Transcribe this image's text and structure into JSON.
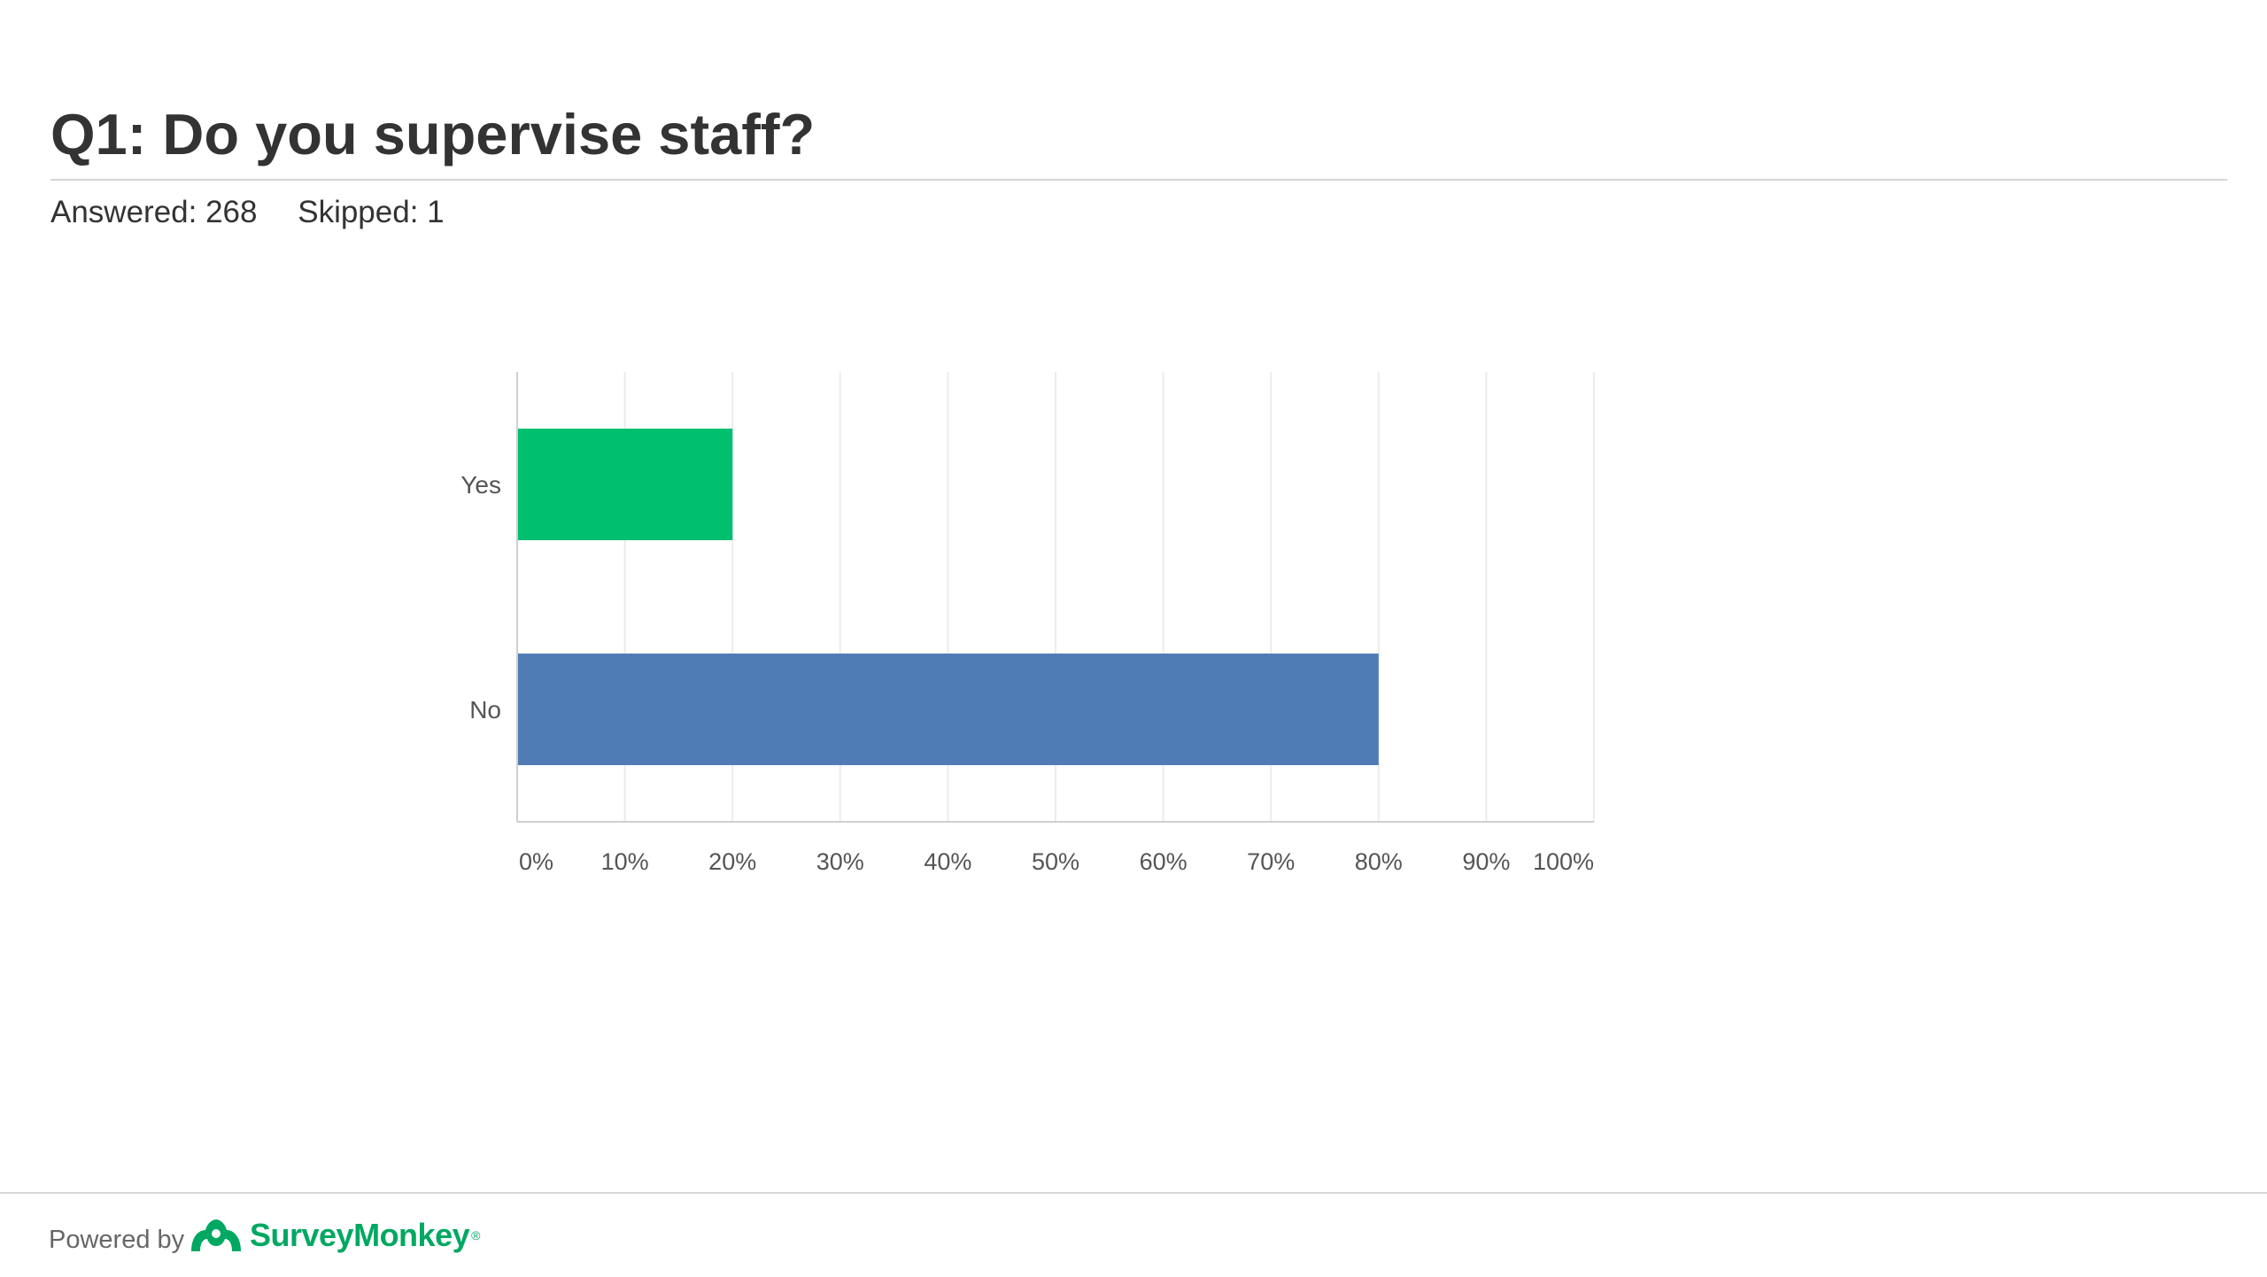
{
  "question": {
    "title": "Q1: Do you supervise staff?"
  },
  "stats": {
    "answered": "Answered: 268",
    "skipped": "Skipped: 1"
  },
  "footer": {
    "powered_by": "Powered by",
    "brand": "SurveyMonkey",
    "brand_mark": "®",
    "brand_color": "#00a862",
    "logo_icon": "surveymonkey-logo-icon"
  },
  "chart_data": {
    "type": "bar",
    "orientation": "horizontal",
    "categories": [
      "Yes",
      "No"
    ],
    "values": [
      20,
      80
    ],
    "colors": [
      "#00bf6f",
      "#507cb6"
    ],
    "xlim": [
      0,
      100
    ],
    "xticks": [
      "0%",
      "10%",
      "20%",
      "30%",
      "40%",
      "50%",
      "60%",
      "70%",
      "80%",
      "90%",
      "100%"
    ],
    "grid": true,
    "legend": "none"
  }
}
